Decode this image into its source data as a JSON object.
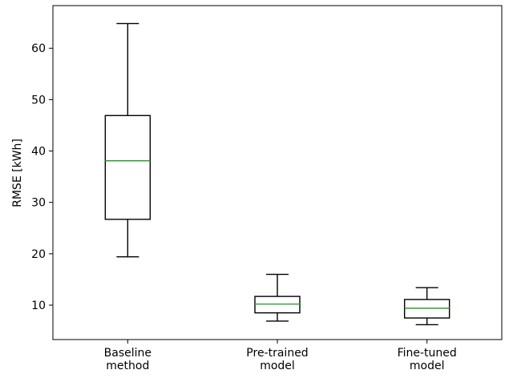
{
  "chart_data": {
    "type": "box",
    "title": "",
    "xlabel": "",
    "ylabel": "RMSE [kWh]",
    "ylim": [
      3.3,
      68.3
    ],
    "yticks": [
      10,
      20,
      30,
      40,
      50,
      60
    ],
    "grid": false,
    "categories": [
      [
        "Baseline",
        "method"
      ],
      [
        "Pre-trained",
        "model"
      ],
      [
        "Fine-tuned",
        "model"
      ]
    ],
    "boxes": [
      {
        "whisker_low": 19.4,
        "q1": 26.7,
        "median": 38.1,
        "q3": 46.9,
        "whisker_high": 64.8
      },
      {
        "whisker_low": 6.9,
        "q1": 8.5,
        "median": 10.2,
        "q3": 11.7,
        "whisker_high": 16.0
      },
      {
        "whisker_low": 6.2,
        "q1": 7.5,
        "median": 9.4,
        "q3": 11.1,
        "whisker_high": 13.4
      }
    ],
    "colors": {
      "box": "#000000",
      "median": "#2ca02c",
      "axis": "#000000"
    }
  }
}
